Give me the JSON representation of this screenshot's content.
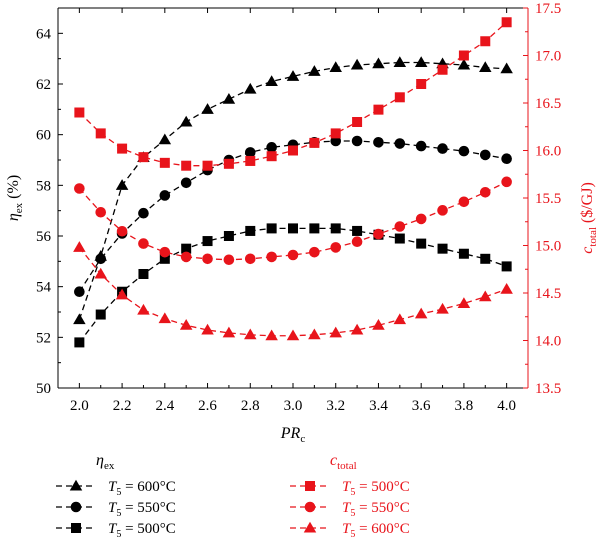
{
  "chart_data": {
    "type": "line",
    "x": [
      2.0,
      2.1,
      2.2,
      2.3,
      2.4,
      2.5,
      2.6,
      2.7,
      2.8,
      2.9,
      3.0,
      3.1,
      3.2,
      3.3,
      3.4,
      3.5,
      3.6,
      3.7,
      3.8,
      3.9,
      4.0
    ],
    "x_ticks": [
      "2.0",
      "2.2",
      "2.4",
      "2.6",
      "2.8",
      "3.0",
      "3.2",
      "3.4",
      "3.6",
      "3.8",
      "4.0"
    ],
    "xlim": [
      1.9,
      4.1
    ],
    "xlabel": {
      "main": "PR",
      "sub": "c"
    },
    "y_left": {
      "label": {
        "main": "η",
        "sub": "ex",
        "unit": " (%)"
      },
      "lim": [
        50,
        65
      ],
      "ticks": [
        "50",
        "52",
        "54",
        "56",
        "58",
        "60",
        "62",
        "64"
      ],
      "color": "#000000"
    },
    "y_right": {
      "label": {
        "main": "c",
        "sub": "total",
        "unit": " ($/GJ)"
      },
      "lim": [
        13.5,
        17.5
      ],
      "ticks": [
        "13.5",
        "14.0",
        "14.5",
        "15.0",
        "15.5",
        "16.0",
        "16.5",
        "17.0",
        "17.5"
      ],
      "color": "#e8141b"
    },
    "series": [
      {
        "group": "eta",
        "label": "T5 = 600°C",
        "marker": "triangle",
        "color": "#000000",
        "axis": "left",
        "values": [
          52.7,
          55.2,
          58.0,
          59.1,
          59.8,
          60.5,
          61.0,
          61.4,
          61.8,
          62.1,
          62.3,
          62.5,
          62.65,
          62.75,
          62.8,
          62.85,
          62.85,
          62.8,
          62.75,
          62.65,
          62.6
        ]
      },
      {
        "group": "eta",
        "label": "T5 = 550°C",
        "marker": "circle",
        "color": "#000000",
        "axis": "left",
        "values": [
          53.8,
          55.1,
          56.1,
          56.9,
          57.6,
          58.1,
          58.6,
          59.0,
          59.3,
          59.5,
          59.6,
          59.7,
          59.75,
          59.75,
          59.7,
          59.65,
          59.55,
          59.45,
          59.35,
          59.2,
          59.05
        ]
      },
      {
        "group": "eta",
        "label": "T5 = 500°C",
        "marker": "square",
        "color": "#000000",
        "axis": "left",
        "values": [
          51.8,
          52.9,
          53.8,
          54.5,
          55.1,
          55.5,
          55.8,
          56.0,
          56.2,
          56.3,
          56.3,
          56.3,
          56.3,
          56.2,
          56.05,
          55.9,
          55.7,
          55.5,
          55.3,
          55.1,
          54.8
        ]
      },
      {
        "group": "cost",
        "label": "T5 = 500°C",
        "marker": "square",
        "color": "#e8141b",
        "axis": "right",
        "values": [
          16.4,
          16.18,
          16.02,
          15.93,
          15.87,
          15.84,
          15.84,
          15.86,
          15.89,
          15.94,
          16.0,
          16.08,
          16.18,
          16.3,
          16.43,
          16.56,
          16.7,
          16.85,
          17.0,
          17.15,
          17.35
        ]
      },
      {
        "group": "cost",
        "label": "T5 = 550°C",
        "marker": "circle",
        "color": "#e8141b",
        "axis": "right",
        "values": [
          15.6,
          15.35,
          15.15,
          15.02,
          14.93,
          14.88,
          14.86,
          14.85,
          14.86,
          14.88,
          14.9,
          14.93,
          14.98,
          15.04,
          15.12,
          15.2,
          15.28,
          15.37,
          15.46,
          15.56,
          15.67
        ]
      },
      {
        "group": "cost",
        "label": "T5 = 600°C",
        "marker": "triangle",
        "color": "#e8141b",
        "axis": "right",
        "values": [
          14.98,
          14.7,
          14.48,
          14.32,
          14.23,
          14.16,
          14.11,
          14.08,
          14.06,
          14.05,
          14.05,
          14.06,
          14.08,
          14.11,
          14.16,
          14.22,
          14.28,
          14.33,
          14.39,
          14.46,
          14.54
        ]
      }
    ],
    "legend": {
      "placement": "bottom",
      "left": {
        "title_main": "η",
        "title_sub": "ex",
        "entries": [
          {
            "marker": "triangle",
            "text_var": "T",
            "text_sub": "5",
            "text_rest": " = 600°C"
          },
          {
            "marker": "circle",
            "text_var": "T",
            "text_sub": "5",
            "text_rest": " = 550°C"
          },
          {
            "marker": "square",
            "text_var": "T",
            "text_sub": "5",
            "text_rest": " = 500°C"
          }
        ]
      },
      "right": {
        "title_main": "c",
        "title_sub": "total",
        "entries": [
          {
            "marker": "square",
            "text_var": "T",
            "text_sub": "5",
            "text_rest": " = 500°C"
          },
          {
            "marker": "circle",
            "text_var": "T",
            "text_sub": "5",
            "text_rest": " = 550°C"
          },
          {
            "marker": "triangle",
            "text_var": "T",
            "text_sub": "5",
            "text_rest": " = 600°C"
          }
        ]
      }
    },
    "grid": false
  }
}
